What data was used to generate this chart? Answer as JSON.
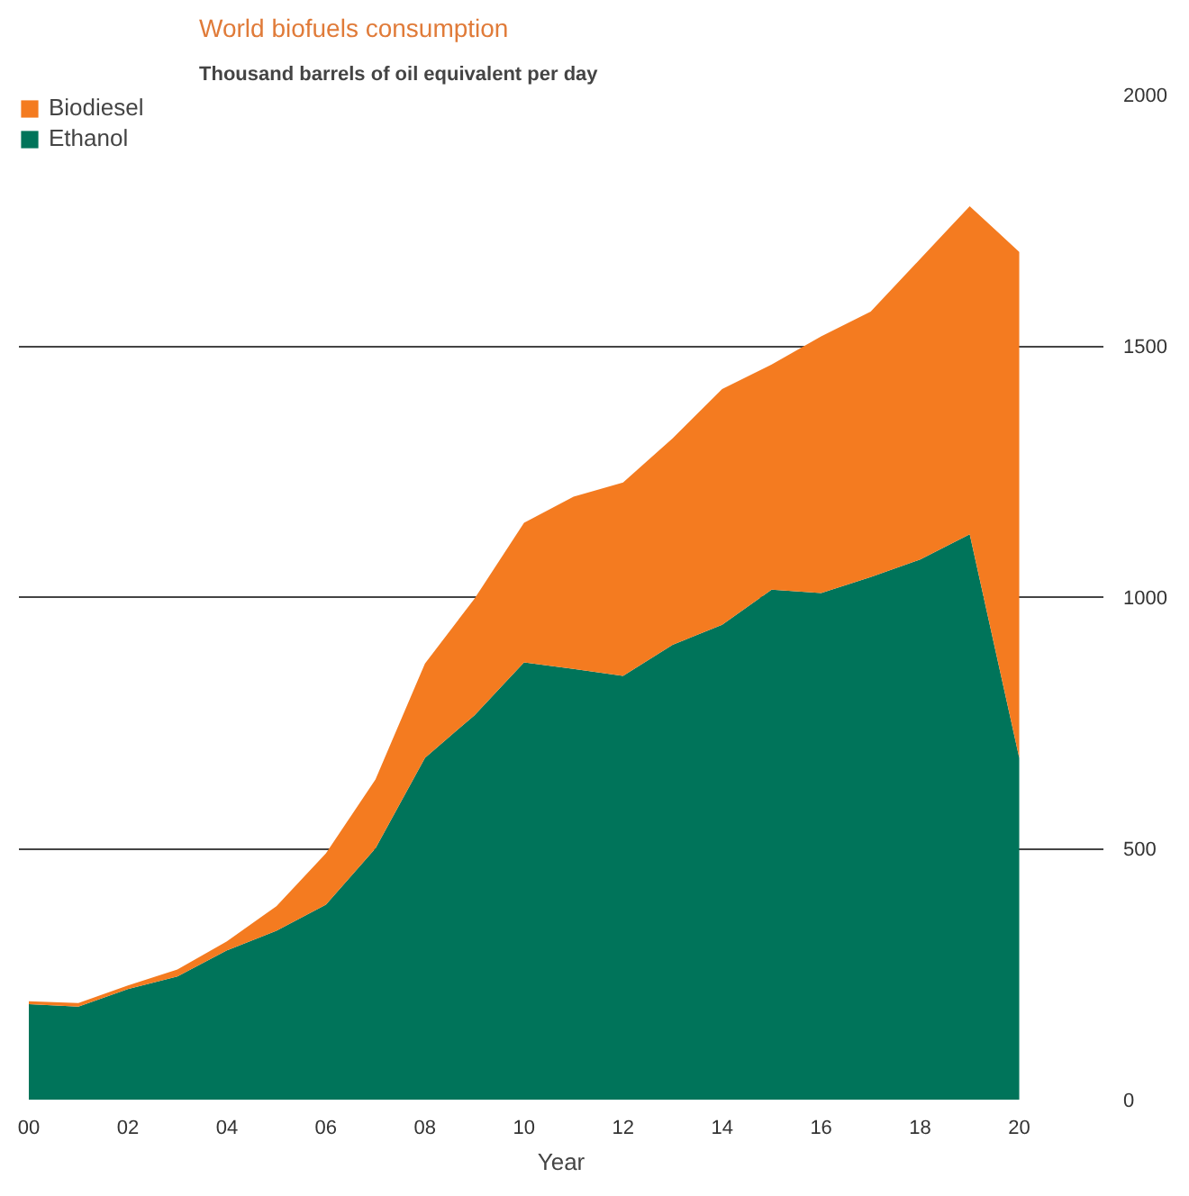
{
  "chart_data": {
    "type": "area",
    "stacked": true,
    "title": "World biofuels consumption",
    "subtitle": "Thousand barrels of oil equivalent per day",
    "xlabel": "Year",
    "x": [
      2000,
      2001,
      2002,
      2003,
      2004,
      2005,
      2006,
      2007,
      2008,
      2009,
      2010,
      2011,
      2012,
      2013,
      2014,
      2015,
      2016,
      2017,
      2018,
      2019,
      2020
    ],
    "series": [
      {
        "name": "Ethanol",
        "color": "#00745a",
        "values": [
          190,
          185,
          220,
          245,
          297,
          336,
          388,
          500,
          680,
          765,
          870,
          857,
          843,
          905,
          945,
          1015,
          1008,
          1040,
          1075,
          1125,
          680
        ]
      },
      {
        "name": "Biodiesel",
        "color": "#f47b20",
        "values": [
          6,
          7,
          7,
          14,
          18,
          49,
          102,
          137,
          188,
          232,
          278,
          343,
          385,
          411,
          469,
          448,
          511,
          528,
          598,
          653,
          1007
        ]
      }
    ],
    "xlim": [
      1999.8,
      2021.7
    ],
    "xticks": [
      {
        "value": 2000,
        "label": "00"
      },
      {
        "value": 2002,
        "label": "02"
      },
      {
        "value": 2004,
        "label": "04"
      },
      {
        "value": 2006,
        "label": "06"
      },
      {
        "value": 2008,
        "label": "08"
      },
      {
        "value": 2010,
        "label": "10"
      },
      {
        "value": 2012,
        "label": "12"
      },
      {
        "value": 2014,
        "label": "14"
      },
      {
        "value": 2016,
        "label": "16"
      },
      {
        "value": 2018,
        "label": "18"
      },
      {
        "value": 2020,
        "label": "20"
      }
    ],
    "ylim": [
      0,
      2000
    ],
    "yticks": [
      0,
      500,
      1000,
      1500,
      2000
    ],
    "grid": "y",
    "legend": "top left"
  }
}
